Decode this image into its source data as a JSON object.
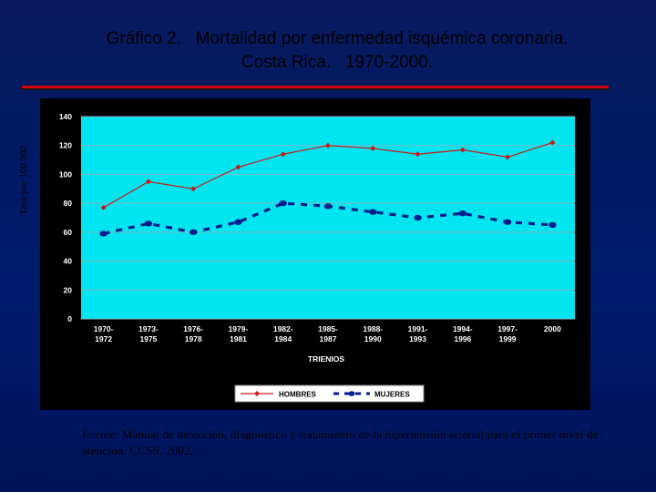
{
  "title": {
    "line1": "Gráfico 2.   Mortalidad por enfermedad isquémica coronaria.",
    "line2": "Costa Rica.   1970-2000."
  },
  "source": "Fuente:  Manual de detección, diagnóstico y tratamiento de la hipertensión arterial  para el primer nivel de atención.  CCSS.  2002.",
  "colors": {
    "plot_bg": "#00e5f0",
    "frame_bg": "#000000",
    "hombres": "#cc1a1a",
    "mujeres": "#001f8c",
    "rule": "#d40000"
  },
  "chart_data": {
    "type": "line",
    "ylabel": "Tasa por 100 000",
    "xlabel": "TRIENIOS",
    "ylim": [
      0,
      140
    ],
    "yticks": [
      0,
      20,
      40,
      60,
      80,
      100,
      120,
      140
    ],
    "grid": true,
    "legend_position": "bottom",
    "categories": [
      "1970-1972",
      "1973-1975",
      "1976-1978",
      "1979-1981",
      "1982-1984",
      "1985-1987",
      "1988-1990",
      "1991-1993",
      "1994-1996",
      "1997-1999",
      "2000"
    ],
    "category_lines": [
      [
        "1970-",
        "1972"
      ],
      [
        "1973-",
        "1975"
      ],
      [
        "1976-",
        "1978"
      ],
      [
        "1979-",
        "1981"
      ],
      [
        "1982-",
        "1984"
      ],
      [
        "1985-",
        "1987"
      ],
      [
        "1988-",
        "1990"
      ],
      [
        "1991-",
        "1993"
      ],
      [
        "1994-",
        "1996"
      ],
      [
        "1997-",
        "1999"
      ],
      [
        "2000",
        ""
      ]
    ],
    "series": [
      {
        "name": "HOMBRES",
        "color": "#cc1a1a",
        "style": "solid",
        "marker": "diamond",
        "values": [
          77,
          95,
          90,
          105,
          114,
          120,
          118,
          114,
          117,
          112,
          122
        ]
      },
      {
        "name": "MUJERES",
        "color": "#001f8c",
        "style": "dashed",
        "marker": "circle",
        "values": [
          59,
          66,
          60,
          67,
          80,
          78,
          74,
          70,
          73,
          67,
          65
        ]
      }
    ]
  }
}
